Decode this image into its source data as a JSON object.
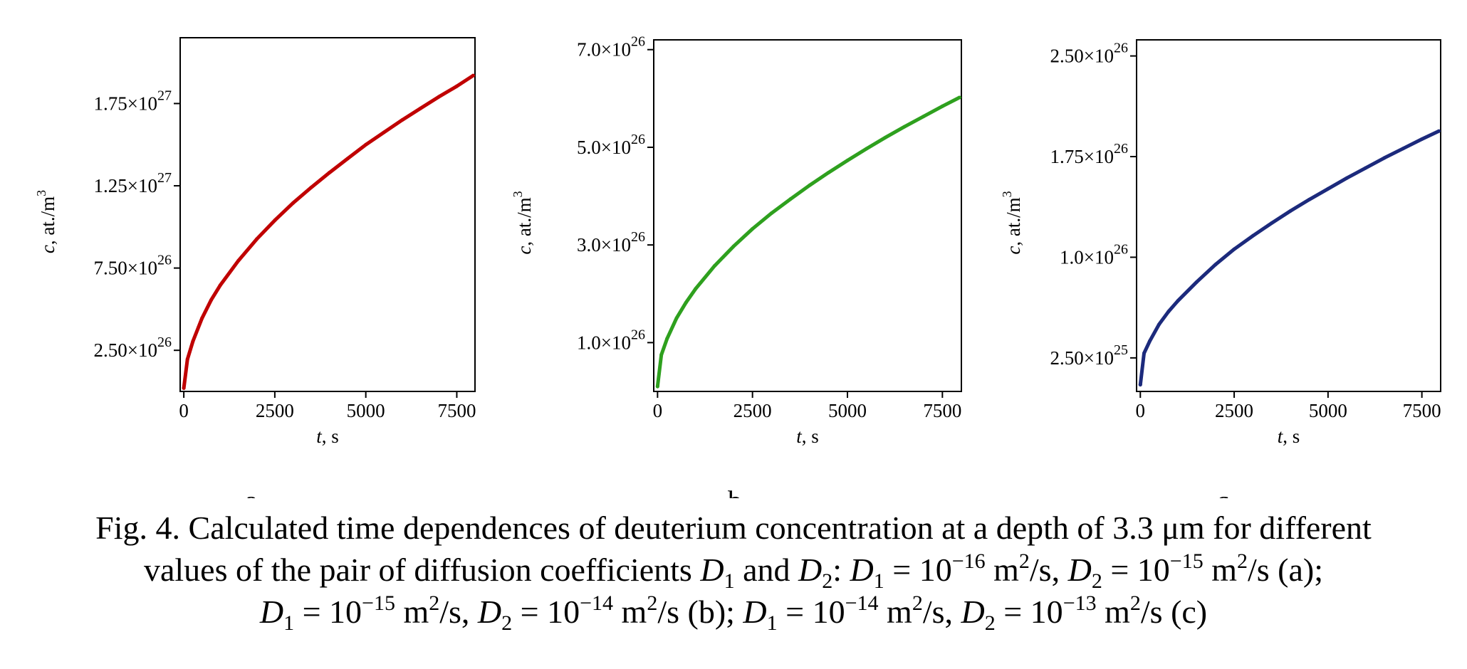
{
  "chart_data": [
    {
      "type": "line",
      "panel_label": "a",
      "xlabel_var": "t",
      "xlabel_unit": ", s",
      "ylabel_var": "c",
      "ylabel_unit": ", at./m",
      "ylabel_exp": "3",
      "xlim": [
        -100,
        8000
      ],
      "ylim": [
        0,
        2.15e+27
      ],
      "xticks": [
        {
          "value": 0,
          "label": "0"
        },
        {
          "value": 2500,
          "label": "2500"
        },
        {
          "value": 5000,
          "label": "5000"
        },
        {
          "value": 7500,
          "label": "7500"
        }
      ],
      "yticks": [
        {
          "value": 2.5e+26,
          "mant": "2.50×10",
          "exp": "26"
        },
        {
          "value": 7.5e+26,
          "mant": "7.50×10",
          "exp": "26"
        },
        {
          "value": 1.25e+27,
          "mant": "1.25×10",
          "exp": "27"
        },
        {
          "value": 1.75e+27,
          "mant": "1.75×10",
          "exp": "27"
        }
      ],
      "color": "#c00000",
      "x": [
        0,
        100,
        250,
        500,
        750,
        1000,
        1500,
        2000,
        2500,
        3000,
        3500,
        4000,
        4500,
        5000,
        5500,
        6000,
        6500,
        7000,
        7500,
        7950
      ],
      "y": [
        2e+25,
        1.95e+26,
        3.05e+26,
        4.45e+26,
        5.55e+26,
        6.45e+26,
        7.95e+26,
        9.25e+26,
        1.04e+27,
        1.145e+27,
        1.24e+27,
        1.33e+27,
        1.415e+27,
        1.5e+27,
        1.575e+27,
        1.65e+27,
        1.72e+27,
        1.79e+27,
        1.855e+27,
        1.92e+27
      ]
    },
    {
      "type": "line",
      "panel_label": "b",
      "xlabel_var": "t",
      "xlabel_unit": ", s",
      "ylabel_var": "c",
      "ylabel_unit": ", at./m",
      "ylabel_exp": "3",
      "xlim": [
        -100,
        8000
      ],
      "ylim": [
        0,
        7.2e+26
      ],
      "xticks": [
        {
          "value": 0,
          "label": "0"
        },
        {
          "value": 2500,
          "label": "2500"
        },
        {
          "value": 5000,
          "label": "5000"
        },
        {
          "value": 7500,
          "label": "7500"
        }
      ],
      "yticks": [
        {
          "value": 1e+26,
          "mant": "1.0×10",
          "exp": "26"
        },
        {
          "value": 3e+26,
          "mant": "3.0×10",
          "exp": "26"
        },
        {
          "value": 5e+26,
          "mant": "5.0×10",
          "exp": "26"
        },
        {
          "value": 7e+26,
          "mant": "7.0×10",
          "exp": "26"
        }
      ],
      "color": "#2ea01e",
      "x": [
        0,
        100,
        250,
        500,
        750,
        1000,
        1500,
        2000,
        2500,
        3000,
        3500,
        4000,
        4500,
        5000,
        5500,
        6000,
        6500,
        7000,
        7500,
        7950
      ],
      "y": [
        1e+25,
        7.5e+25,
        1.08e+26,
        1.5e+26,
        1.82e+26,
        2.1e+26,
        2.57e+26,
        2.97e+26,
        3.33e+26,
        3.65e+26,
        3.94e+26,
        4.22e+26,
        4.48e+26,
        4.73e+26,
        4.97e+26,
        5.2e+26,
        5.42e+26,
        5.63e+26,
        5.84e+26,
        6.02e+26
      ]
    },
    {
      "type": "line",
      "panel_label": "c",
      "xlabel_var": "t",
      "xlabel_unit": ", s",
      "ylabel_var": "c",
      "ylabel_unit": ", at./m",
      "ylabel_exp": "3",
      "xlim": [
        -100,
        8000
      ],
      "ylim": [
        0,
        2.62e+26
      ],
      "xticks": [
        {
          "value": 0,
          "label": "0"
        },
        {
          "value": 2500,
          "label": "2500"
        },
        {
          "value": 5000,
          "label": "5000"
        },
        {
          "value": 7500,
          "label": "7500"
        }
      ],
      "yticks": [
        {
          "value": 2.5e+25,
          "mant": "2.50×10",
          "exp": "25"
        },
        {
          "value": 1e+26,
          "mant": "1.0×10",
          "exp": "26"
        },
        {
          "value": 1.75e+26,
          "mant": "1.75×10",
          "exp": "26"
        },
        {
          "value": 2.5e+26,
          "mant": "2.50×10",
          "exp": "26"
        }
      ],
      "color": "#1c2a7c",
      "x": [
        0,
        100,
        250,
        500,
        750,
        1000,
        1500,
        2000,
        2500,
        3000,
        3500,
        4000,
        4500,
        5000,
        5500,
        6000,
        6500,
        7000,
        7500,
        7950
      ],
      "y": [
        5e+24,
        2.85e+25,
        3.75e+25,
        5e+25,
        5.95e+25,
        6.75e+25,
        8.15e+25,
        9.45e+25,
        1.06e+26,
        1.16e+26,
        1.255e+26,
        1.345e+26,
        1.43e+26,
        1.51e+26,
        1.59e+26,
        1.665e+26,
        1.74e+26,
        1.81e+26,
        1.88e+26,
        1.94e+26
      ]
    }
  ],
  "caption": {
    "line1": "Fig. 4. Calculated time dependences of deuterium concentration at a depth of 3.3 μm for different",
    "line2_a": "values of the pair of diffusion coefficients ",
    "line2_D": "D",
    "line2_sub1": "1",
    "line2_and": " and ",
    "line2_sub2": "2",
    "line2_colon": ": ",
    "line2_eq1": " = 10",
    "line2_exp1": "−16",
    "line2_unit1": " m",
    "line2_sq": "2",
    "line2_per1": "/s, ",
    "line2_eq2": " = 10",
    "line2_exp2": "−15",
    "line2_end": "/s (a);",
    "line3_eq1": " = 10",
    "line3_exp1": "−15",
    "line3_per1": "/s, ",
    "line3_eq2": " = 10",
    "line3_exp2": "−14",
    "line3_mid": "/s (b); ",
    "line3_eq3": " = 10",
    "line3_exp3": "−14",
    "line3_per3": "/s, ",
    "line3_eq4": " = 10",
    "line3_exp4": "−13",
    "line3_end": "/s (c)"
  }
}
